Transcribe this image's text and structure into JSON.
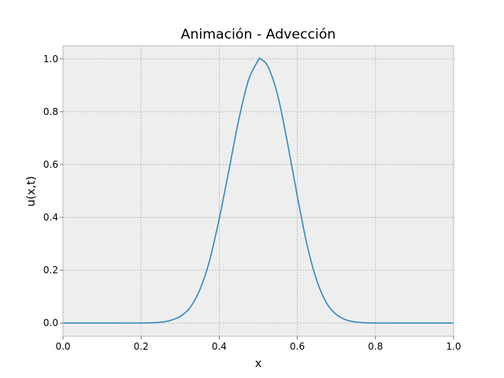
{
  "chart_data": {
    "type": "line",
    "title": "Animación - Advección",
    "xlabel": "x",
    "ylabel": "u(x,t)",
    "xlim": [
      0.0,
      1.0
    ],
    "ylim": [
      -0.05,
      1.05
    ],
    "xticks": [
      "0.0",
      "0.2",
      "0.4",
      "0.6",
      "0.8",
      "1.0"
    ],
    "yticks": [
      "0.0",
      "0.2",
      "0.4",
      "0.6",
      "0.8",
      "1.0"
    ],
    "grid": true,
    "legend": false,
    "series": [
      {
        "color": "#348abd",
        "x": [
          0.0,
          0.05,
          0.1,
          0.15,
          0.2,
          0.225,
          0.25,
          0.275,
          0.3,
          0.325,
          0.35,
          0.375,
          0.4,
          0.425,
          0.45,
          0.475,
          0.5,
          0.505,
          0.525,
          0.55,
          0.575,
          0.6,
          0.625,
          0.65,
          0.675,
          0.7,
          0.725,
          0.75,
          0.775,
          0.8,
          0.85,
          0.9,
          0.95,
          1.0
        ],
        "y": [
          0.0,
          0.0,
          0.0,
          0.0,
          0.0,
          0.001,
          0.003,
          0.01,
          0.025,
          0.058,
          0.125,
          0.235,
          0.395,
          0.58,
          0.77,
          0.92,
          0.995,
          1.0,
          0.97,
          0.86,
          0.68,
          0.48,
          0.295,
          0.16,
          0.075,
          0.032,
          0.012,
          0.004,
          0.001,
          0.0,
          0.0,
          0.0,
          0.0,
          0.0
        ]
      }
    ]
  },
  "colors": {
    "axes_bg": "#eeeeee",
    "grid": "#b2b2b2",
    "spine": "#bcbcbc",
    "line": "#348abd"
  }
}
